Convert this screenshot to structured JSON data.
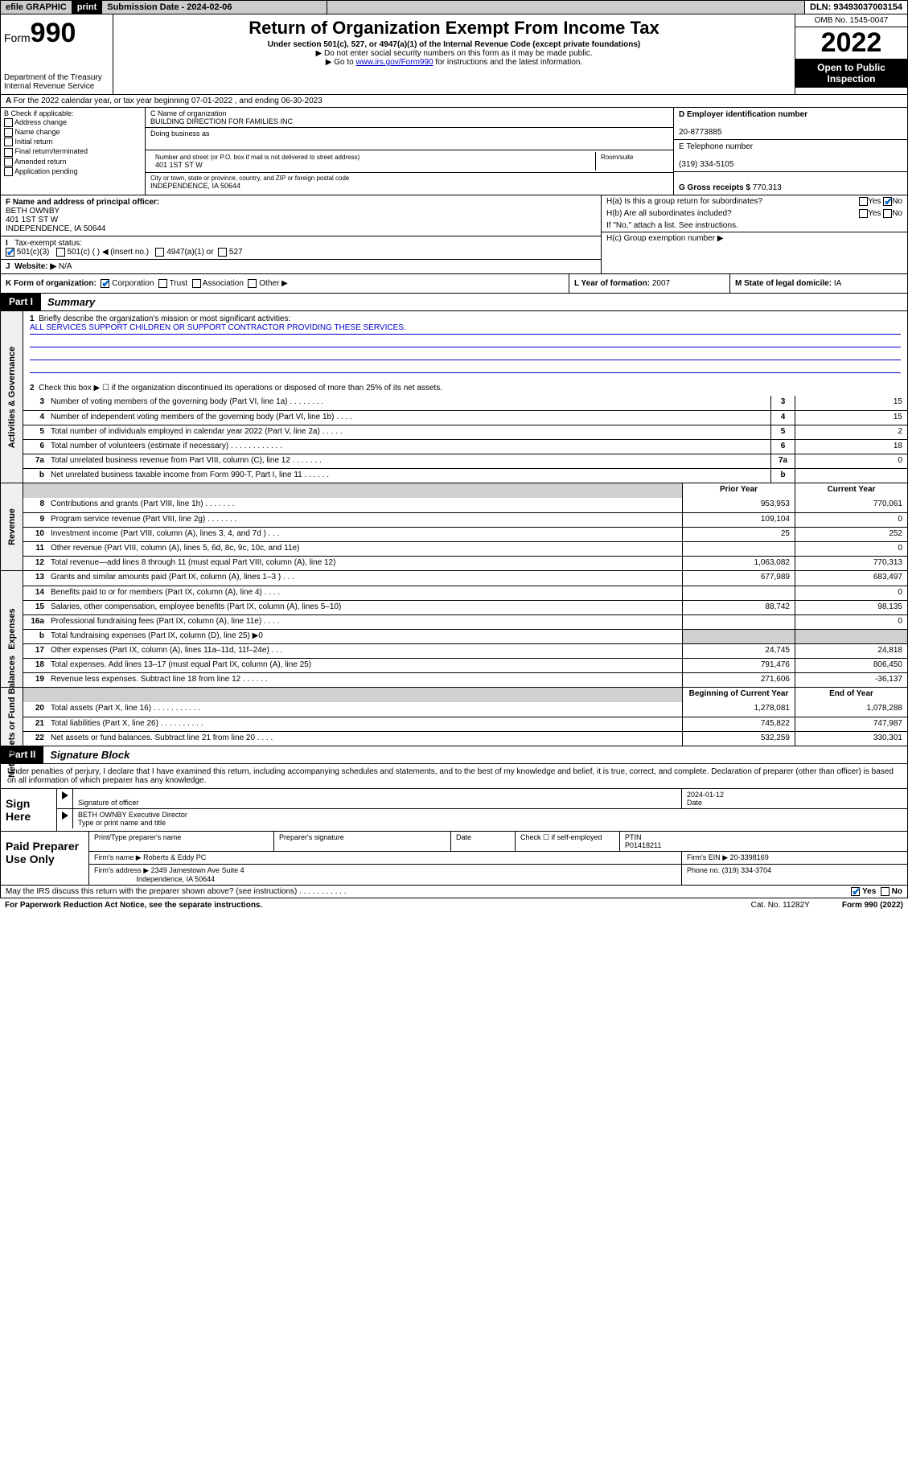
{
  "topbar": {
    "efile": "efile GRAPHIC",
    "print": "print",
    "sub_label": "Submission Date - 2024-02-06",
    "dln": "DLN: 93493037003154"
  },
  "header": {
    "form_word": "Form",
    "form_num": "990",
    "dept": "Department of the Treasury",
    "irs": "Internal Revenue Service",
    "title": "Return of Organization Exempt From Income Tax",
    "sub1": "Under section 501(c), 527, or 4947(a)(1) of the Internal Revenue Code (except private foundations)",
    "sub2": "▶ Do not enter social security numbers on this form as it may be made public.",
    "sub3_pre": "▶ Go to ",
    "sub3_link": "www.irs.gov/Form990",
    "sub3_post": " for instructions and the latest information.",
    "omb": "OMB No. 1545-0047",
    "year": "2022",
    "open": "Open to Public Inspection"
  },
  "row_a": "For the 2022 calendar year, or tax year beginning 07-01-2022   , and ending 06-30-2023",
  "col_b": {
    "title": "B Check if applicable:",
    "items": [
      "Address change",
      "Name change",
      "Initial return",
      "Final return/terminated",
      "Amended return",
      "Application pending"
    ]
  },
  "col_c": {
    "name_lbl": "C Name of organization",
    "name": "BUILDING DIRECTION FOR FAMILIES INC",
    "dba_lbl": "Doing business as",
    "street_lbl": "Number and street (or P.O. box if mail is not delivered to street address)",
    "street": "401 1ST ST W",
    "room_lbl": "Room/suite",
    "city_lbl": "City or town, state or province, country, and ZIP or foreign postal code",
    "city": "INDEPENDENCE, IA  50644"
  },
  "col_d": {
    "d_lbl": "D Employer identification number",
    "d_val": "20-8773885",
    "e_lbl": "E Telephone number",
    "e_val": "(319) 334-5105",
    "g_lbl": "G Gross receipts $",
    "g_val": "770,313"
  },
  "row_f": {
    "f_lbl": "F  Name and address of principal officer:",
    "f_name": "BETH OWNBY",
    "f_addr1": "401 1ST ST W",
    "f_addr2": "INDEPENDENCE, IA  50644",
    "i_lbl": "Tax-exempt status:",
    "i_501c3": "501(c)(3)",
    "i_501c": "501(c) (  ) ◀ (insert no.)",
    "i_4947": "4947(a)(1) or",
    "i_527": "527",
    "j_lbl": "Website: ▶",
    "j_val": "N/A",
    "h_a": "H(a)  Is this a group return for subordinates?",
    "h_b": "H(b)  Are all subordinates included?",
    "h_note": "If \"No,\" attach a list. See instructions.",
    "h_c": "H(c)  Group exemption number ▶",
    "yes": "Yes",
    "no": "No"
  },
  "row_k": {
    "k_lbl": "K Form of organization:",
    "k_corp": "Corporation",
    "k_trust": "Trust",
    "k_assoc": "Association",
    "k_other": "Other ▶",
    "l_lbl": "L Year of formation:",
    "l_val": "2007",
    "m_lbl": "M State of legal domicile:",
    "m_val": "IA"
  },
  "part1": {
    "hdr": "Part I",
    "title": "Summary",
    "line1_lbl": "Briefly describe the organization's mission or most significant activities:",
    "line1_val": "ALL SERVICES SUPPORT CHILDREN OR SUPPORT CONTRACTOR PROVIDING THESE SERVICES.",
    "line2": "Check this box ▶ ☐  if the organization discontinued its operations or disposed of more than 25% of its net assets.",
    "tabs": {
      "gov": "Activities & Governance",
      "rev": "Revenue",
      "exp": "Expenses",
      "net": "Net Assets or Fund Balances"
    },
    "cols": {
      "prior": "Prior Year",
      "current": "Current Year",
      "begin": "Beginning of Current Year",
      "end": "End of Year"
    },
    "lines_gov": [
      {
        "n": "3",
        "d": "Number of voting members of the governing body (Part VI, line 1a)   .    .    .    .    .    .    .    .",
        "v": "15"
      },
      {
        "n": "4",
        "d": "Number of independent voting members of the governing body (Part VI, line 1b)   .    .    .    .",
        "v": "15"
      },
      {
        "n": "5",
        "d": "Total number of individuals employed in calendar year 2022 (Part V, line 2a)   .    .    .    .    .",
        "v": "2"
      },
      {
        "n": "6",
        "d": "Total number of volunteers (estimate if necessary)   .    .    .    .    .    .    .    .    .    .    .    .",
        "v": "18"
      },
      {
        "n": "7a",
        "d": "Total unrelated business revenue from Part VIII, column (C), line 12   .    .    .    .    .    .    .",
        "v": "0"
      },
      {
        "n": "b",
        "d": "Net unrelated business taxable income from Form 990-T, Part I, line 11   .    .    .    .    .    .",
        "v": ""
      }
    ],
    "lines_rev": [
      {
        "n": "8",
        "d": "Contributions and grants (Part VIII, line 1h)   .    .    .    .    .    .    .",
        "p": "953,953",
        "c": "770,061"
      },
      {
        "n": "9",
        "d": "Program service revenue (Part VIII, line 2g)   .    .    .    .    .    .    .",
        "p": "109,104",
        "c": "0"
      },
      {
        "n": "10",
        "d": "Investment income (Part VIII, column (A), lines 3, 4, and 7d )   .    .    .",
        "p": "25",
        "c": "252"
      },
      {
        "n": "11",
        "d": "Other revenue (Part VIII, column (A), lines 5, 6d, 8c, 9c, 10c, and 11e)",
        "p": "",
        "c": "0"
      },
      {
        "n": "12",
        "d": "Total revenue—add lines 8 through 11 (must equal Part VIII, column (A), line 12)",
        "p": "1,063,082",
        "c": "770,313"
      }
    ],
    "lines_exp": [
      {
        "n": "13",
        "d": "Grants and similar amounts paid (Part IX, column (A), lines 1–3 )   .    .    .",
        "p": "677,989",
        "c": "683,497"
      },
      {
        "n": "14",
        "d": "Benefits paid to or for members (Part IX, column (A), line 4)   .    .    .    .",
        "p": "",
        "c": "0"
      },
      {
        "n": "15",
        "d": "Salaries, other compensation, employee benefits (Part IX, column (A), lines 5–10)",
        "p": "88,742",
        "c": "98,135"
      },
      {
        "n": "16a",
        "d": "Professional fundraising fees (Part IX, column (A), line 11e)   .    .    .    .",
        "p": "",
        "c": "0"
      },
      {
        "n": "b",
        "d": "Total fundraising expenses (Part IX, column (D), line 25) ▶0",
        "p": null,
        "c": null
      },
      {
        "n": "17",
        "d": "Other expenses (Part IX, column (A), lines 11a–11d, 11f–24e)   .    .    .",
        "p": "24,745",
        "c": "24,818"
      },
      {
        "n": "18",
        "d": "Total expenses. Add lines 13–17 (must equal Part IX, column (A), line 25)",
        "p": "791,476",
        "c": "806,450"
      },
      {
        "n": "19",
        "d": "Revenue less expenses. Subtract line 18 from line 12   .    .    .    .    .    .",
        "p": "271,606",
        "c": "-36,137"
      }
    ],
    "lines_net": [
      {
        "n": "20",
        "d": "Total assets (Part X, line 16)   .    .    .    .    .    .    .    .    .    .    .",
        "p": "1,278,081",
        "c": "1,078,288"
      },
      {
        "n": "21",
        "d": "Total liabilities (Part X, line 26)   .    .    .    .    .    .    .    .    .    .",
        "p": "745,822",
        "c": "747,987"
      },
      {
        "n": "22",
        "d": "Net assets or fund balances. Subtract line 21 from line 20   .    .    .    .",
        "p": "532,259",
        "c": "330,301"
      }
    ]
  },
  "part2": {
    "hdr": "Part II",
    "title": "Signature Block",
    "decl": "Under penalties of perjury, I declare that I have examined this return, including accompanying schedules and statements, and to the best of my knowledge and belief, it is true, correct, and complete. Declaration of preparer (other than officer) is based on all information of which preparer has any knowledge.",
    "sign_here": "Sign Here",
    "sig_officer": "Signature of officer",
    "sig_date": "Date",
    "sig_date_val": "2024-01-12",
    "sig_name": "BETH OWNBY Executive Director",
    "sig_name_lbl": "Type or print name and title",
    "paid": "Paid Preparer Use Only",
    "prep_name_lbl": "Print/Type preparer's name",
    "prep_sig_lbl": "Preparer's signature",
    "date_lbl": "Date",
    "check_lbl": "Check ☐ if self-employed",
    "ptin_lbl": "PTIN",
    "ptin": "P01418211",
    "firm_name_lbl": "Firm's name    ▶",
    "firm_name": "Roberts & Eddy PC",
    "firm_ein_lbl": "Firm's EIN ▶",
    "firm_ein": "20-3398169",
    "firm_addr_lbl": "Firm's address ▶",
    "firm_addr1": "2349 Jamestown Ave Suite 4",
    "firm_addr2": "Independence, IA  50644",
    "phone_lbl": "Phone no.",
    "phone": "(319) 334-3704",
    "discuss": "May the IRS discuss this return with the preparer shown above? (see instructions)   .    .    .    .    .    .    .    .    .    .    ."
  },
  "footer": {
    "left": "For Paperwork Reduction Act Notice, see the separate instructions.",
    "mid": "Cat. No. 11282Y",
    "right": "Form 990 (2022)"
  },
  "colors": {
    "link": "#0000cc",
    "check": "#0066cc"
  }
}
